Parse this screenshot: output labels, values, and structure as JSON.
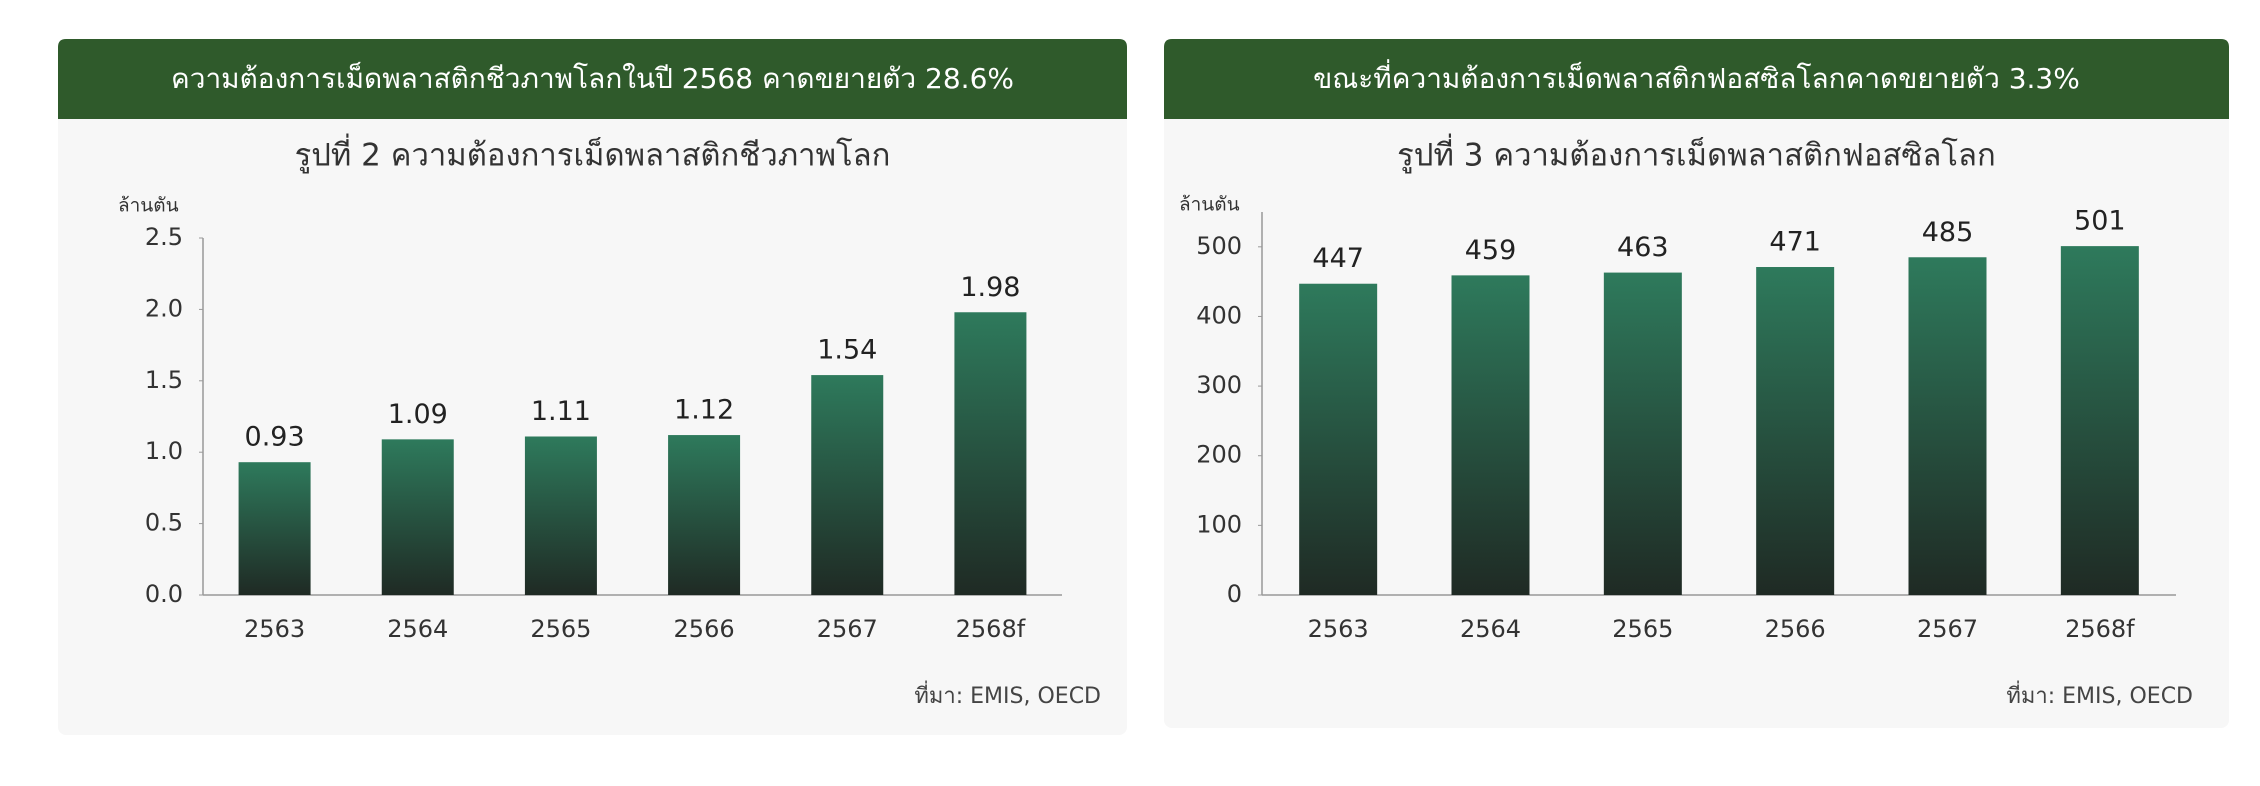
{
  "chart_data": [
    {
      "type": "bar",
      "header": "ความต้องการเม็ดพลาสติกชีวภาพโลกในปี 2568 คาดขยายตัว 28.6%",
      "title": "รูปที่ 2  ความต้องการเม็ดพลาสติกชีวภาพโลก",
      "y_label": "ล้านตัน",
      "categories": [
        "2563",
        "2564",
        "2565",
        "2566",
        "2567",
        "2568f"
      ],
      "values": [
        0.93,
        1.09,
        1.11,
        1.12,
        1.54,
        1.98
      ],
      "color": "#2e7a5c",
      "ylim": [
        0,
        2.5
      ],
      "yticks": [
        {
          "value": 0,
          "label": "0.0"
        },
        0.5,
        {
          "value": 1,
          "label": "1.0"
        },
        1.5,
        {
          "value": 2,
          "label": "2.0"
        },
        2.5
      ],
      "source": "ที่มา: EMIS, OECD"
    },
    {
      "type": "bar",
      "header": "ขณะที่ความต้องการเม็ดพลาสติกฟอสซิลโลกคาดขยายตัว 3.3%",
      "title": "รูปที่ 3  ความต้องการเม็ดพลาสติกฟอสซิลโลก",
      "y_label": "ล้านตัน",
      "categories": [
        "2563",
        "2564",
        "2565",
        "2566",
        "2567",
        "2568f"
      ],
      "values": [
        447,
        459,
        463,
        471,
        485,
        501
      ],
      "color": "#2e7a5c",
      "ylim": [
        0,
        550
      ],
      "yticks": [
        0,
        100,
        200,
        300,
        400,
        500
      ],
      "source": "ที่มา: EMIS, OECD"
    }
  ]
}
